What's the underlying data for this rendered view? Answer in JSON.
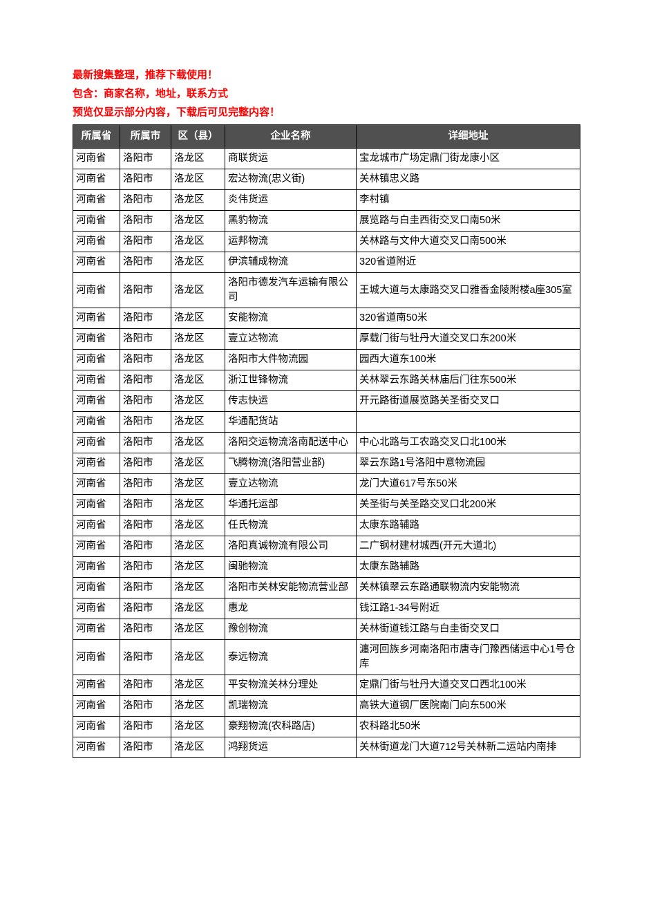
{
  "intro": {
    "line1": "最新搜集整理，推荐下载使用！",
    "line2": "包含：商家名称，地址，联系方式",
    "line3": "预览仅显示部分内容，下载后可见完整内容！"
  },
  "table": {
    "header_bg": "#505050",
    "header_color": "#ffffff",
    "border_color": "#000000",
    "columns": [
      "所属省",
      "所属市",
      "区（县）",
      "企业名称",
      "详细地址"
    ],
    "rows": [
      [
        "河南省",
        "洛阳市",
        "洛龙区",
        "商联货运",
        "宝龙城市广场定鼎门街龙康小区"
      ],
      [
        "河南省",
        "洛阳市",
        "洛龙区",
        "宏达物流(忠义街)",
        "关林镇忠义路"
      ],
      [
        "河南省",
        "洛阳市",
        "洛龙区",
        "炎伟货运",
        "李村镇"
      ],
      [
        "河南省",
        "洛阳市",
        "洛龙区",
        "黑豹物流",
        "展览路与白圭西街交叉口南50米"
      ],
      [
        "河南省",
        "洛阳市",
        "洛龙区",
        "运邦物流",
        "关林路与文仲大道交叉口南500米"
      ],
      [
        "河南省",
        "洛阳市",
        "洛龙区",
        "伊滨辅成物流",
        "320省道附近"
      ],
      [
        "河南省",
        "洛阳市",
        "洛龙区",
        "洛阳市德发汽车运输有限公司",
        "王城大道与太康路交叉口雅香金陵附楼a座305室"
      ],
      [
        "河南省",
        "洛阳市",
        "洛龙区",
        "安能物流",
        "320省道南50米"
      ],
      [
        "河南省",
        "洛阳市",
        "洛龙区",
        "壹立达物流",
        "厚载门街与牡丹大道交叉口东200米"
      ],
      [
        "河南省",
        "洛阳市",
        "洛龙区",
        "洛阳市大件物流园",
        "园西大道东100米"
      ],
      [
        "河南省",
        "洛阳市",
        "洛龙区",
        "浙江世锋物流",
        "关林翠云东路关林庙后门往东500米"
      ],
      [
        "河南省",
        "洛阳市",
        "洛龙区",
        "传志快运",
        "开元路街道展览路关圣街交叉口"
      ],
      [
        "河南省",
        "洛阳市",
        "洛龙区",
        "华通配货站",
        ""
      ],
      [
        "河南省",
        "洛阳市",
        "洛龙区",
        "洛阳交运物流洛南配送中心",
        "中心北路与工农路交叉口北100米"
      ],
      [
        "河南省",
        "洛阳市",
        "洛龙区",
        "飞腾物流(洛阳营业部)",
        "翠云东路1号洛阳中意物流园"
      ],
      [
        "河南省",
        "洛阳市",
        "洛龙区",
        "壹立达物流",
        "龙门大道617号东50米"
      ],
      [
        "河南省",
        "洛阳市",
        "洛龙区",
        "华通托运部",
        "关圣街与关圣路交叉口北200米"
      ],
      [
        "河南省",
        "洛阳市",
        "洛龙区",
        "任氏物流",
        "太康东路辅路"
      ],
      [
        "河南省",
        "洛阳市",
        "洛龙区",
        "洛阳真诚物流有限公司",
        "二广钢材建材城西(开元大道北)"
      ],
      [
        "河南省",
        "洛阳市",
        "洛龙区",
        "闽驰物流",
        "太康东路辅路"
      ],
      [
        "河南省",
        "洛阳市",
        "洛龙区",
        "洛阳市关林安能物流营业部",
        "关林镇翠云东路通联物流内安能物流"
      ],
      [
        "河南省",
        "洛阳市",
        "洛龙区",
        "惠龙",
        "钱江路1-34号附近"
      ],
      [
        "河南省",
        "洛阳市",
        "洛龙区",
        "豫创物流",
        "关林街道钱江路与白圭街交叉口"
      ],
      [
        "河南省",
        "洛阳市",
        "洛龙区",
        "泰远物流",
        "瀍河回族乡河南洛阳市唐寺门豫西储运中心1号仓库"
      ],
      [
        "河南省",
        "洛阳市",
        "洛龙区",
        "平安物流关林分理处",
        "定鼎门街与牡丹大道交叉口西北100米"
      ],
      [
        "河南省",
        "洛阳市",
        "洛龙区",
        "凯瑞物流",
        "高铁大道钢厂医院南门向东500米"
      ],
      [
        "河南省",
        "洛阳市",
        "洛龙区",
        "豪翔物流(农科路店)",
        "农科路北50米"
      ],
      [
        "河南省",
        "洛阳市",
        "洛龙区",
        "鸿翔货运",
        "关林街道龙门大道712号关林新二运站内南排"
      ]
    ]
  }
}
